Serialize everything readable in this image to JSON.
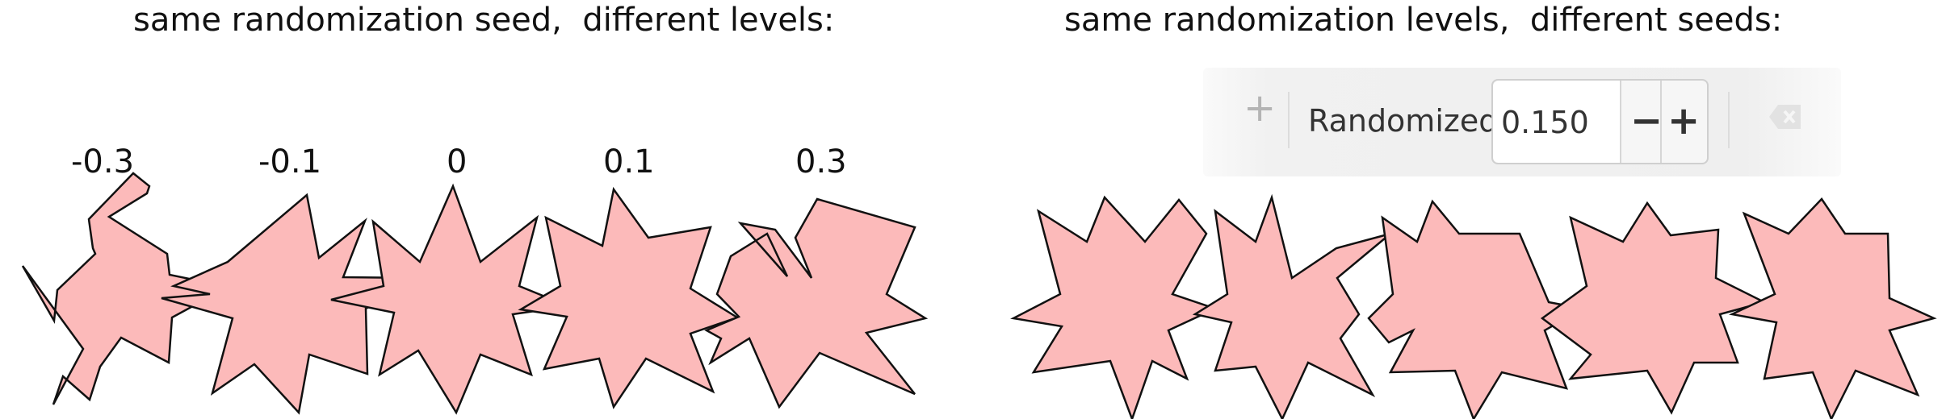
{
  "headings": {
    "left": "same randomization seed,  different levels:",
    "right": "same randomization levels,  different seeds:"
  },
  "levels": [
    "-0.3",
    "-0.1",
    "0",
    "0.1",
    "0.3"
  ],
  "toolbar": {
    "label": "Randomized:",
    "value": "0.150",
    "minus": "−",
    "plus": "+",
    "plus_left": "+",
    "clear_icon": "clear-field-icon"
  },
  "colors": {
    "star_fill": "#fcbaba",
    "star_stroke": "#111111"
  }
}
